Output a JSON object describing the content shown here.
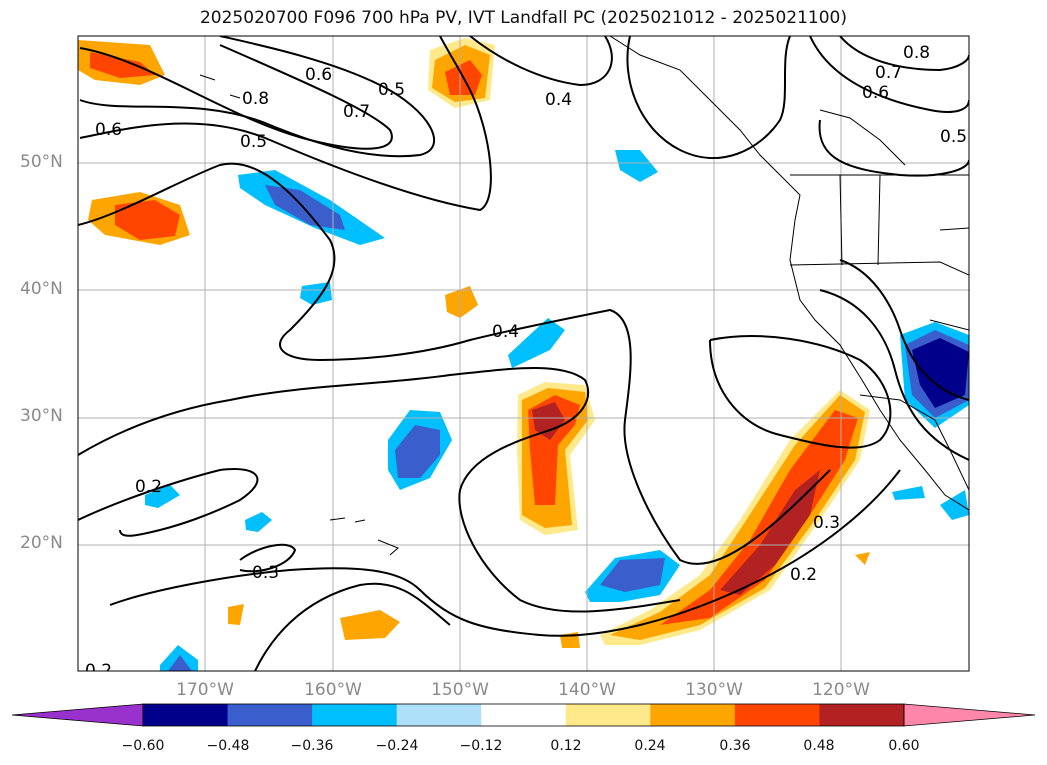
{
  "title": "2025020700 F096 700 hPa PV, IVT Landfall PC (2025021012 - 2025021100)",
  "lat_labels": [
    "50°N",
    "40°N",
    "30°N",
    "20°N"
  ],
  "lon_labels": [
    "170°W",
    "160°W",
    "150°W",
    "140°W",
    "130°W",
    "120°W"
  ],
  "contour_labels": [
    "0.8",
    "0.6",
    "0.5",
    "0.7",
    "0.5",
    "0.4",
    "0.6",
    "0.8",
    "0.7",
    "0.6",
    "0.5",
    "0.4",
    "0.2",
    "0.3",
    "0.3",
    "0.2",
    "0.2"
  ],
  "colorbar": {
    "ticks": [
      "−0.60",
      "−0.48",
      "−0.36",
      "−0.24",
      "−0.12",
      "0.12",
      "0.24",
      "0.36",
      "0.48",
      "0.60"
    ],
    "colors": [
      "#9932cc",
      "#00008b",
      "#3a5fcd",
      "#00bfff",
      "#aee0fa",
      "#ffffff",
      "#ffe98a",
      "#ffa500",
      "#ff4500",
      "#b22222",
      "#ff88aa"
    ]
  }
}
